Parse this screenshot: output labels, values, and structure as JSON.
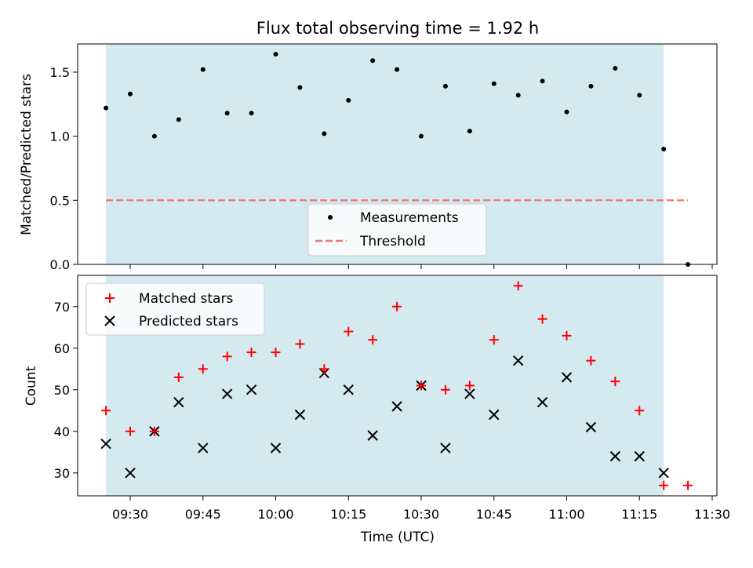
{
  "chart_data": {
    "title": "Flux total observing time = 1.92 h",
    "xlabel": "Time (UTC)",
    "x_ticks": [
      "09:30",
      "09:45",
      "10:00",
      "10:15",
      "10:30",
      "10:45",
      "11:00",
      "11:15",
      "11:30"
    ],
    "shaded_region": {
      "start": "09:25",
      "end": "11:20",
      "color": "#d4eaf0"
    },
    "times": [
      "09:25",
      "09:30",
      "09:35",
      "09:40",
      "09:45",
      "09:50",
      "09:55",
      "10:00",
      "10:05",
      "10:10",
      "10:15",
      "10:20",
      "10:25",
      "10:30",
      "10:35",
      "10:40",
      "10:45",
      "10:50",
      "10:55",
      "11:00",
      "11:05",
      "11:10",
      "11:15",
      "11:20",
      "11:25"
    ],
    "panels": [
      {
        "type": "scatter",
        "ylabel": "Matched/Predicted stars",
        "ylim": [
          0,
          1.72
        ],
        "y_ticks": [
          "0.0",
          "0.5",
          "1.0",
          "1.5"
        ],
        "series": [
          {
            "name": "Measurements",
            "marker": "dot",
            "color": "#000000",
            "values": [
              1.22,
              1.33,
              1.0,
              1.13,
              1.52,
              1.18,
              1.18,
              1.64,
              1.38,
              1.02,
              1.28,
              1.59,
              1.52,
              1.0,
              1.39,
              1.04,
              1.41,
              1.32,
              1.43,
              1.19,
              1.39,
              1.53,
              1.32,
              0.9,
              0.0
            ]
          }
        ],
        "threshold": {
          "name": "Threshold",
          "value": 0.5,
          "color": "#f07878",
          "style": "dashed"
        },
        "legend": "lower-center"
      },
      {
        "type": "scatter",
        "ylabel": "Count",
        "ylim": [
          24.5,
          77.5
        ],
        "y_ticks": [
          "30",
          "40",
          "50",
          "60",
          "70"
        ],
        "series": [
          {
            "name": "Matched stars",
            "marker": "plus",
            "color": "#ff0000",
            "values": [
              45,
              40,
              40,
              53,
              55,
              58,
              59,
              59,
              61,
              55,
              64,
              62,
              70,
              51,
              50,
              51,
              62,
              75,
              67,
              63,
              57,
              52,
              45,
              27,
              27
            ]
          },
          {
            "name": "Predicted stars",
            "marker": "x",
            "color": "#000000",
            "values": [
              37,
              30,
              40,
              47,
              36,
              49,
              50,
              36,
              44,
              54,
              50,
              39,
              46,
              51,
              36,
              49,
              44,
              57,
              47,
              53,
              41,
              34,
              34,
              30,
              null
            ]
          }
        ],
        "legend": "upper-left"
      }
    ]
  }
}
